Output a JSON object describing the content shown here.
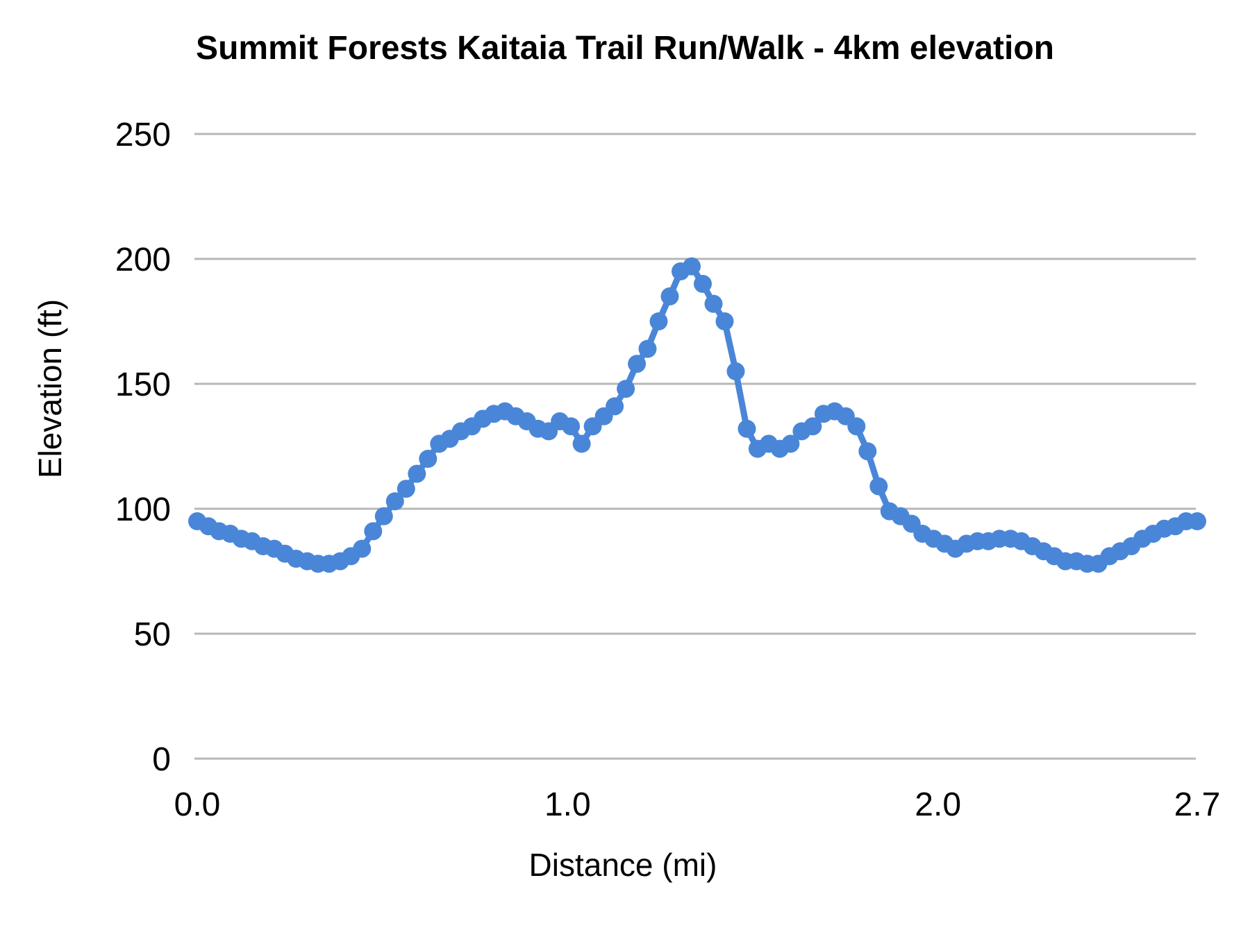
{
  "chart_data": {
    "type": "line",
    "title": "Summit Forests Kaitaia Trail Run/Walk - 4km elevation",
    "xlabel": "Distance (mi)",
    "ylabel": "Elevation (ft)",
    "xlim": [
      0,
      2.7
    ],
    "ylim": [
      0,
      250
    ],
    "grid": "horizontal",
    "legend": "none",
    "marker": "circle",
    "colors": {
      "series": "#4a86d8",
      "gridline": "#b7b7b7",
      "text": "#000000",
      "background": "#ffffff"
    },
    "xticks": [
      {
        "value": 0,
        "label": "0.0"
      },
      {
        "value": 1,
        "label": "1.0"
      },
      {
        "value": 2,
        "label": "2.0"
      },
      {
        "value": 2.7,
        "label": "2.7"
      }
    ],
    "yticks": [
      {
        "value": 0,
        "label": "0"
      },
      {
        "value": 50,
        "label": "50"
      },
      {
        "value": 100,
        "label": "100"
      },
      {
        "value": 150,
        "label": "150"
      },
      {
        "value": 200,
        "label": "200"
      },
      {
        "value": 250,
        "label": "250"
      }
    ],
    "series": [
      {
        "name": "Elevation",
        "x": [
          0,
          0.03,
          0.059,
          0.089,
          0.119,
          0.148,
          0.178,
          0.208,
          0.237,
          0.267,
          0.297,
          0.326,
          0.356,
          0.386,
          0.415,
          0.445,
          0.475,
          0.504,
          0.534,
          0.564,
          0.593,
          0.623,
          0.653,
          0.682,
          0.712,
          0.742,
          0.771,
          0.801,
          0.831,
          0.86,
          0.89,
          0.92,
          0.949,
          0.979,
          1.009,
          1.038,
          1.068,
          1.098,
          1.127,
          1.157,
          1.187,
          1.216,
          1.246,
          1.276,
          1.305,
          1.335,
          1.365,
          1.394,
          1.424,
          1.454,
          1.484,
          1.513,
          1.543,
          1.573,
          1.602,
          1.632,
          1.662,
          1.691,
          1.721,
          1.751,
          1.78,
          1.81,
          1.84,
          1.869,
          1.899,
          1.929,
          1.958,
          1.988,
          2.018,
          2.047,
          2.077,
          2.107,
          2.136,
          2.166,
          2.196,
          2.225,
          2.255,
          2.285,
          2.314,
          2.344,
          2.374,
          2.403,
          2.433,
          2.463,
          2.492,
          2.522,
          2.552,
          2.581,
          2.611,
          2.641,
          2.67,
          2.7
        ],
        "values": [
          95,
          93,
          91,
          90,
          88,
          87,
          85,
          84,
          82,
          80,
          79,
          78,
          78,
          79,
          81,
          84,
          91,
          97,
          103,
          108,
          114,
          120,
          126,
          128,
          131,
          133,
          136,
          138,
          139,
          137,
          135,
          132,
          131,
          135,
          133,
          126,
          133,
          137,
          141,
          148,
          158,
          164,
          175,
          185,
          195,
          197,
          190,
          182,
          175,
          155,
          132,
          124,
          126,
          124,
          126,
          131,
          133,
          138,
          139,
          137,
          133,
          123,
          109,
          99,
          97,
          94,
          90,
          88,
          86,
          84,
          86,
          87,
          87,
          88,
          88,
          87,
          85,
          83,
          81,
          79,
          79,
          78,
          78,
          81,
          83,
          85,
          88,
          90,
          92,
          93,
          95,
          95
        ]
      }
    ]
  }
}
